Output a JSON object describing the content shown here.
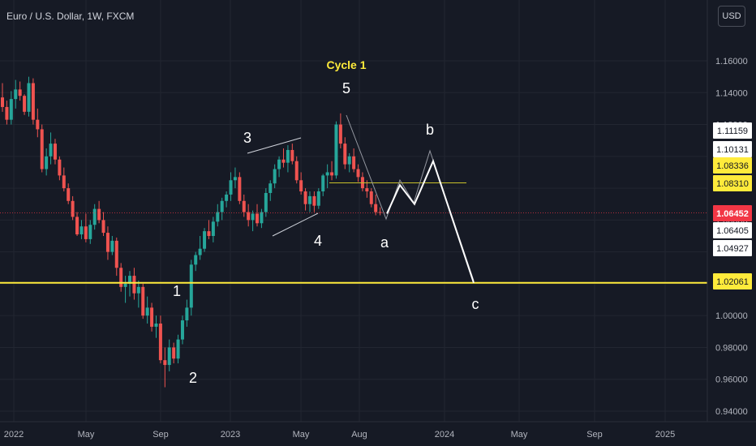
{
  "header": {
    "title": "Euro / U.S. Dollar, 1W, FXCM",
    "currency_button": "USD"
  },
  "colors": {
    "background": "#161a25",
    "up": "#26a69a",
    "down": "#ef5350",
    "support": "#ffeb3b",
    "resistance": "#c9c12a",
    "current": "#f23645",
    "white": "#ffffff"
  },
  "chart_data": {
    "type": "candlestick",
    "x_ticks": [
      "2022",
      "May",
      "Sep",
      "2023",
      "May",
      "Aug",
      "2024",
      "May",
      "Sep",
      "2025"
    ],
    "y_ticks": [
      "1.16000",
      "1.14000",
      "1.12000",
      "1.10000",
      "1.08000",
      "1.06000",
      "1.04000",
      "1.02000",
      "1.00000",
      "0.98000",
      "0.96000",
      "0.94000"
    ],
    "ylim": [
      0.94,
      1.16
    ],
    "price_labels": [
      {
        "value": "1.11159",
        "style": "white"
      },
      {
        "value": "1.10131",
        "style": "white"
      },
      {
        "value": "1.08336",
        "style": "yellow"
      },
      {
        "value": "1.08310",
        "style": "yellow"
      },
      {
        "value": "1.06452",
        "style": "red"
      },
      {
        "value": "1.06405",
        "style": "white"
      },
      {
        "value": "1.04927",
        "style": "white"
      },
      {
        "value": "1.02061",
        "style": "yellow"
      }
    ],
    "horizontal_lines": [
      {
        "name": "support",
        "value": 1.02061
      },
      {
        "name": "resistance",
        "value": 1.08336
      },
      {
        "name": "last-price",
        "value": 1.06452
      }
    ],
    "annotations": [
      {
        "text": "Cycle 1",
        "color": "yellow"
      },
      {
        "text": "5"
      },
      {
        "text": "3"
      },
      {
        "text": "4"
      },
      {
        "text": "1"
      },
      {
        "text": "2"
      },
      {
        "text": "a"
      },
      {
        "text": "b"
      },
      {
        "text": "c"
      }
    ],
    "ohlc": [
      [
        1.137,
        1.146,
        1.128,
        1.131
      ],
      [
        1.131,
        1.135,
        1.12,
        1.123
      ],
      [
        1.123,
        1.141,
        1.12,
        1.136
      ],
      [
        1.136,
        1.148,
        1.13,
        1.142
      ],
      [
        1.142,
        1.147,
        1.135,
        1.138
      ],
      [
        1.138,
        1.139,
        1.126,
        1.128
      ],
      [
        1.128,
        1.15,
        1.125,
        1.146
      ],
      [
        1.146,
        1.149,
        1.12,
        1.123
      ],
      [
        1.123,
        1.13,
        1.112,
        1.117
      ],
      [
        1.117,
        1.12,
        1.09,
        1.092
      ],
      [
        1.092,
        1.105,
        1.088,
        1.1
      ],
      [
        1.1,
        1.115,
        1.095,
        1.108
      ],
      [
        1.108,
        1.111,
        1.095,
        1.098
      ],
      [
        1.098,
        1.1,
        1.085,
        1.088
      ],
      [
        1.088,
        1.093,
        1.078,
        1.08
      ],
      [
        1.08,
        1.083,
        1.07,
        1.072
      ],
      [
        1.072,
        1.075,
        1.06,
        1.062
      ],
      [
        1.062,
        1.065,
        1.05,
        1.051
      ],
      [
        1.051,
        1.06,
        1.048,
        1.056
      ],
      [
        1.056,
        1.064,
        1.046,
        1.048
      ],
      [
        1.048,
        1.06,
        1.045,
        1.057
      ],
      [
        1.057,
        1.07,
        1.054,
        1.067
      ],
      [
        1.067,
        1.072,
        1.058,
        1.06
      ],
      [
        1.06,
        1.065,
        1.05,
        1.052
      ],
      [
        1.052,
        1.056,
        1.035,
        1.04
      ],
      [
        1.04,
        1.05,
        1.038,
        1.047
      ],
      [
        1.047,
        1.049,
        1.025,
        1.03
      ],
      [
        1.03,
        1.033,
        1.015,
        1.018
      ],
      [
        1.018,
        1.025,
        1.008,
        1.02
      ],
      [
        1.02,
        1.028,
        1.012,
        1.025
      ],
      [
        1.025,
        1.03,
        1.01,
        1.014
      ],
      [
        1.014,
        1.022,
        1.005,
        1.018
      ],
      [
        1.018,
        1.02,
        0.998,
        1.0
      ],
      [
        1.0,
        1.012,
        0.995,
        1.005
      ],
      [
        1.005,
        1.008,
        0.99,
        0.993
      ],
      [
        0.993,
        1.0,
        0.986,
        0.995
      ],
      [
        0.995,
        1.0,
        0.97,
        0.972
      ],
      [
        0.972,
        0.98,
        0.955,
        0.969
      ],
      [
        0.969,
        0.985,
        0.965,
        0.98
      ],
      [
        0.98,
        0.983,
        0.97,
        0.973
      ],
      [
        0.973,
        0.988,
        0.97,
        0.985
      ],
      [
        0.985,
        1.0,
        0.982,
        0.997
      ],
      [
        0.997,
        1.01,
        0.993,
        1.005
      ],
      [
        1.005,
        1.035,
        1.0,
        1.032
      ],
      [
        1.032,
        1.04,
        1.028,
        1.038
      ],
      [
        1.038,
        1.05,
        1.035,
        1.042
      ],
      [
        1.042,
        1.055,
        1.04,
        1.053
      ],
      [
        1.053,
        1.06,
        1.048,
        1.05
      ],
      [
        1.05,
        1.062,
        1.046,
        1.059
      ],
      [
        1.059,
        1.07,
        1.056,
        1.065
      ],
      [
        1.065,
        1.074,
        1.06,
        1.072
      ],
      [
        1.072,
        1.078,
        1.068,
        1.076
      ],
      [
        1.076,
        1.09,
        1.072,
        1.085
      ],
      [
        1.085,
        1.093,
        1.08,
        1.087
      ],
      [
        1.087,
        1.09,
        1.07,
        1.072
      ],
      [
        1.072,
        1.076,
        1.062,
        1.065
      ],
      [
        1.065,
        1.07,
        1.056,
        1.06
      ],
      [
        1.06,
        1.066,
        1.053,
        1.064
      ],
      [
        1.064,
        1.07,
        1.056,
        1.058
      ],
      [
        1.058,
        1.067,
        1.055,
        1.065
      ],
      [
        1.065,
        1.08,
        1.062,
        1.077
      ],
      [
        1.077,
        1.085,
        1.072,
        1.083
      ],
      [
        1.083,
        1.095,
        1.08,
        1.092
      ],
      [
        1.092,
        1.1,
        1.087,
        1.098
      ],
      [
        1.098,
        1.105,
        1.093,
        1.096
      ],
      [
        1.096,
        1.107,
        1.09,
        1.104
      ],
      [
        1.104,
        1.108,
        1.095,
        1.097
      ],
      [
        1.097,
        1.1,
        1.083,
        1.085
      ],
      [
        1.085,
        1.09,
        1.076,
        1.078
      ],
      [
        1.078,
        1.08,
        1.066,
        1.07
      ],
      [
        1.07,
        1.078,
        1.065,
        1.075
      ],
      [
        1.075,
        1.078,
        1.065,
        1.069
      ],
      [
        1.069,
        1.08,
        1.067,
        1.078
      ],
      [
        1.078,
        1.089,
        1.075,
        1.088
      ],
      [
        1.088,
        1.095,
        1.08,
        1.09
      ],
      [
        1.09,
        1.097,
        1.085,
        1.088
      ],
      [
        1.088,
        1.122,
        1.086,
        1.12
      ],
      [
        1.12,
        1.127,
        1.105,
        1.108
      ],
      [
        1.108,
        1.112,
        1.092,
        1.095
      ],
      [
        1.095,
        1.102,
        1.09,
        1.1
      ],
      [
        1.1,
        1.105,
        1.09,
        1.092
      ],
      [
        1.092,
        1.095,
        1.084,
        1.087
      ],
      [
        1.087,
        1.09,
        1.078,
        1.08
      ],
      [
        1.08,
        1.085,
        1.074,
        1.078
      ],
      [
        1.078,
        1.08,
        1.068,
        1.07
      ],
      [
        1.07,
        1.076,
        1.063,
        1.065
      ],
      [
        1.065,
        1.068,
        1.063,
        1.0645
      ]
    ],
    "projection": [
      [
        0.477,
        1.06405
      ],
      [
        0.493,
        1.082
      ],
      [
        0.511,
        1.07
      ],
      [
        0.534,
        1.097
      ],
      [
        0.584,
        1.02061
      ]
    ]
  }
}
